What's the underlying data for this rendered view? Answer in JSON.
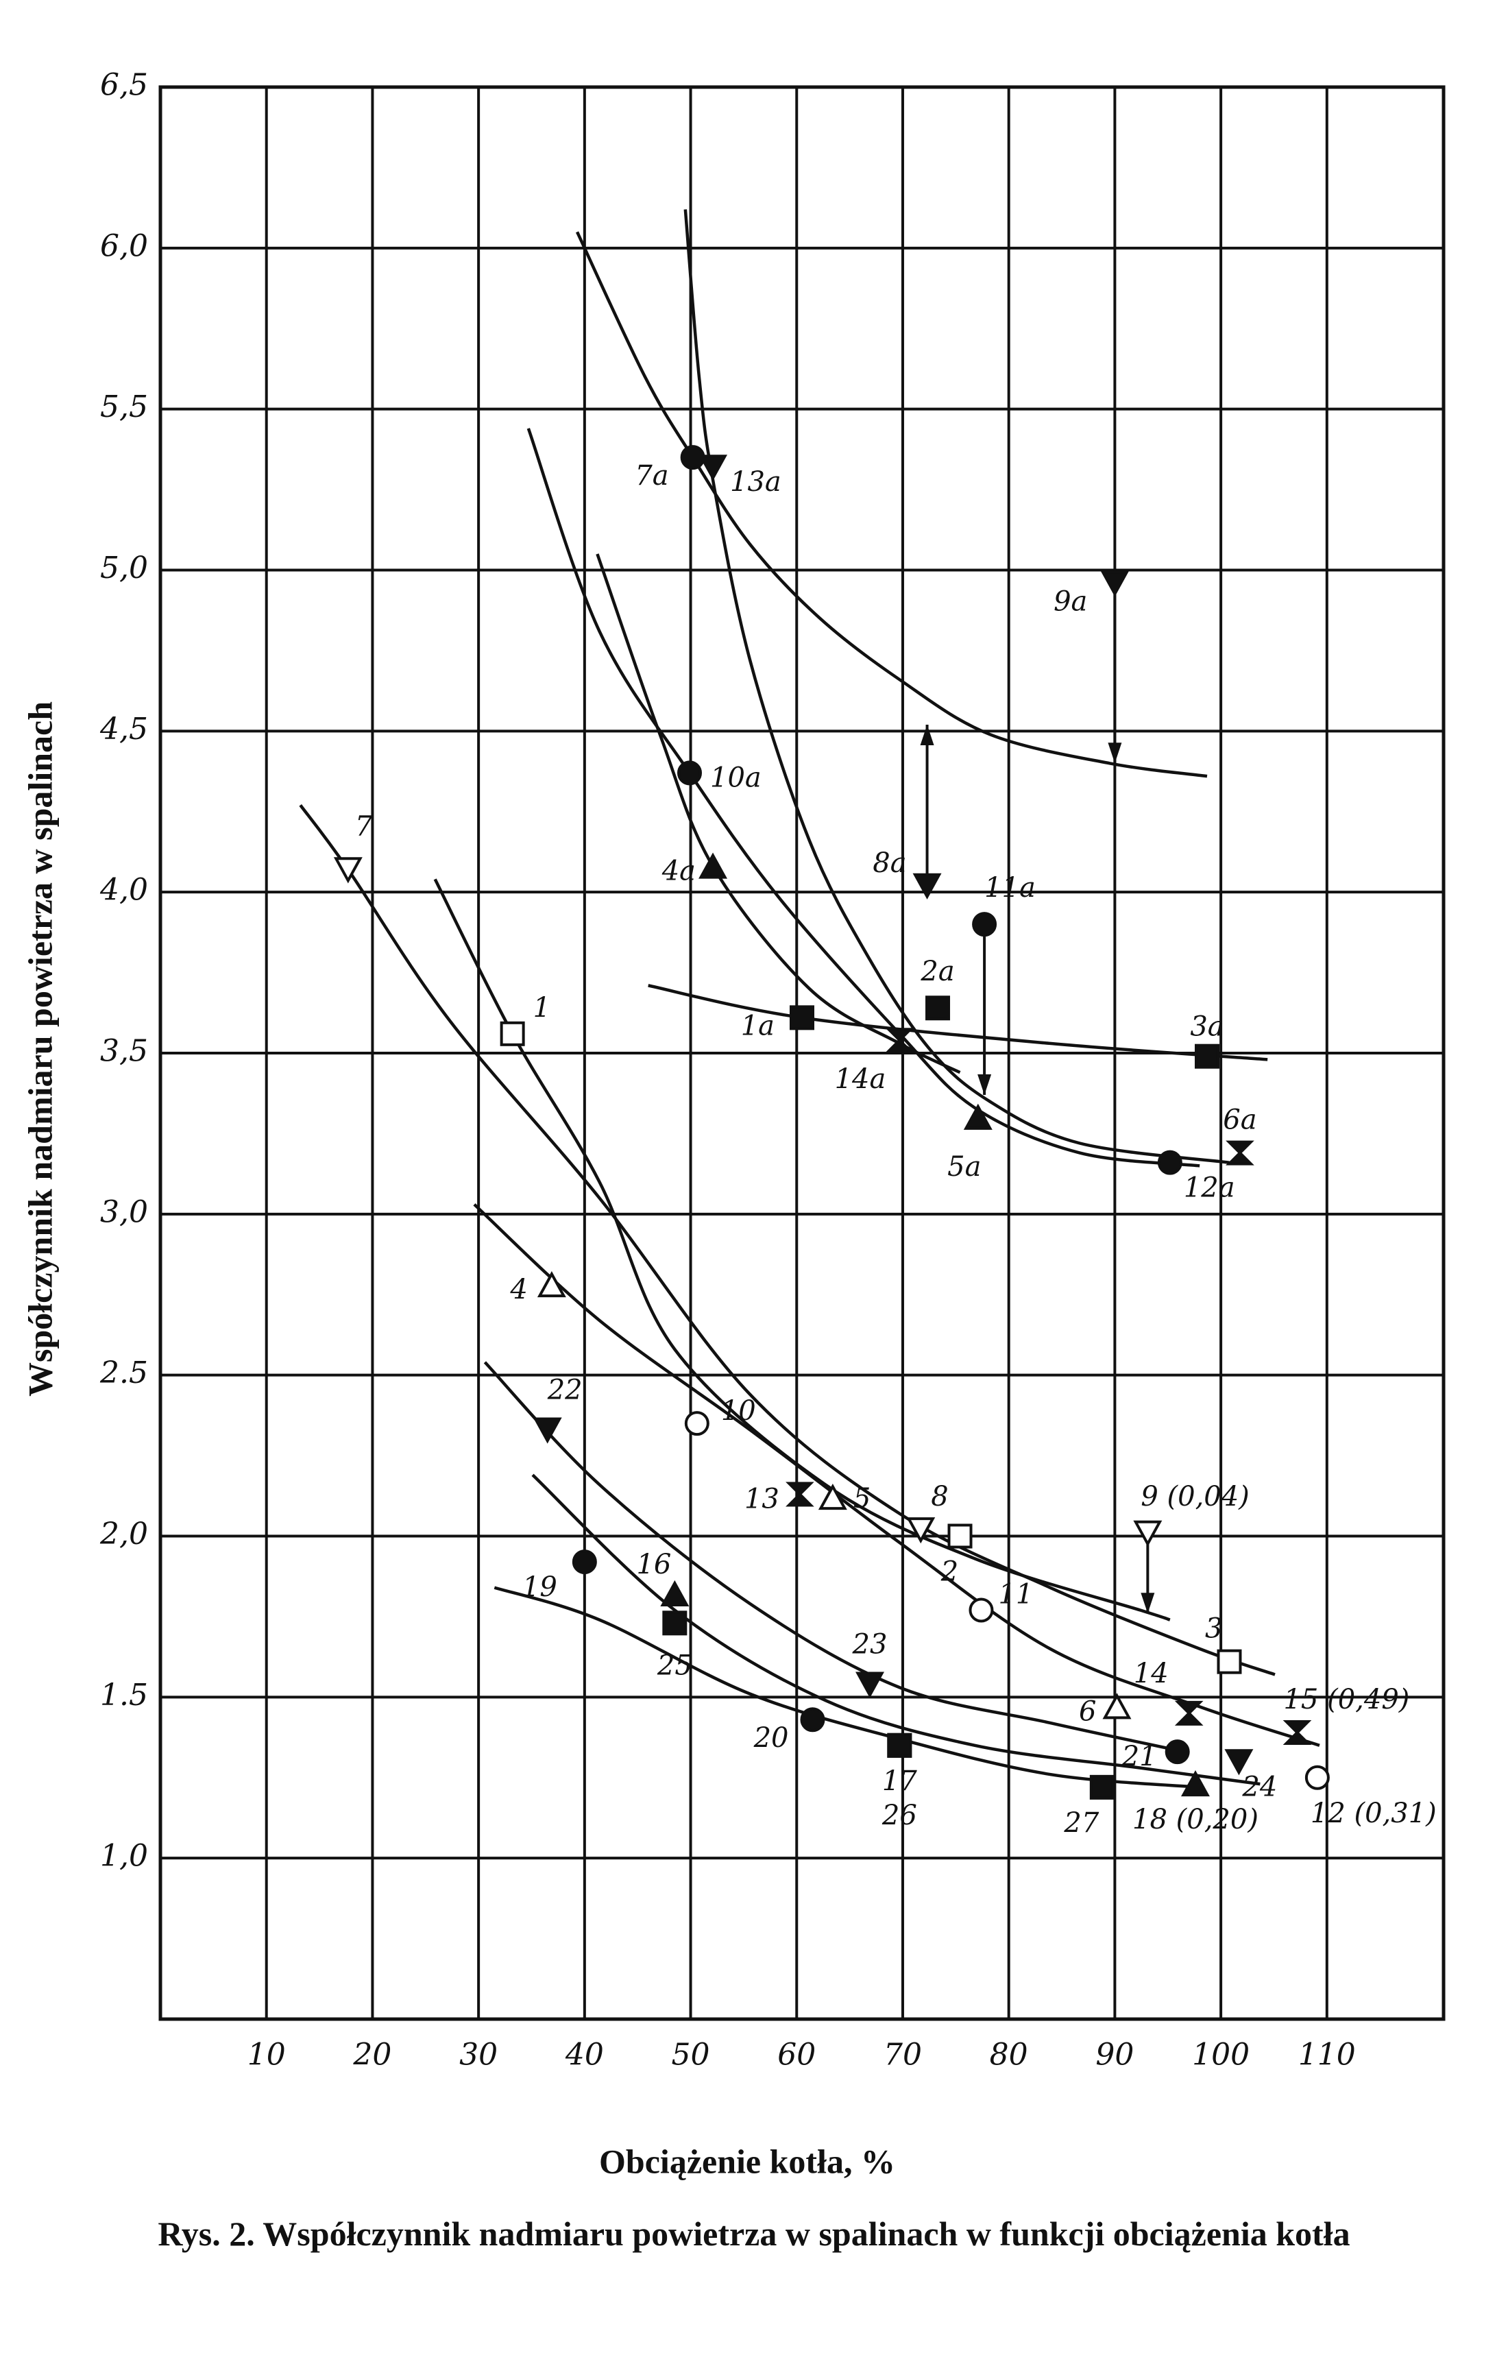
{
  "chart_data": {
    "type": "scatter",
    "title": "Rys. 2. Współczynnik nadmiaru powietrza w spalinach w funkcji obciążenia kotła",
    "x_label": "Obciążenie kotła, %",
    "y_label": "Współczynnik nadmiaru powietrza w spalinach",
    "xlim": [
      0,
      121
    ],
    "ylim": [
      0.5,
      6.5
    ],
    "xticks": [
      10,
      20,
      30,
      40,
      50,
      60,
      70,
      80,
      90,
      100,
      110
    ],
    "yticks": [
      {
        "value": 1.0,
        "label": "1,0"
      },
      {
        "value": 1.5,
        "label": "1.5"
      },
      {
        "value": 2.0,
        "label": "2,0"
      },
      {
        "value": 2.5,
        "label": "2.5"
      },
      {
        "value": 3.0,
        "label": "3,0"
      },
      {
        "value": 3.5,
        "label": "3,5"
      },
      {
        "value": 4.0,
        "label": "4,0"
      },
      {
        "value": 4.5,
        "label": "4,5"
      },
      {
        "value": 5.0,
        "label": "5,0"
      },
      {
        "value": 5.5,
        "label": "5,5"
      },
      {
        "value": 6.0,
        "label": "6,0"
      },
      {
        "value": 6.5,
        "label": "6,5"
      }
    ],
    "grid": true,
    "color": "#111111",
    "points": [
      {
        "label": "7",
        "x": 17.7,
        "y": 4.07,
        "marker": "open-down-triangle"
      },
      {
        "label": "1",
        "x": 33.2,
        "y": 3.56,
        "marker": "open-square"
      },
      {
        "label": "4",
        "x": 36.9,
        "y": 2.78,
        "marker": "open-triangle"
      },
      {
        "label": "22",
        "x": 36.5,
        "y": 2.33,
        "marker": "filled-down-triangle"
      },
      {
        "label": "19",
        "x": 40.0,
        "y": 1.92,
        "marker": "filled-circle"
      },
      {
        "label": "16",
        "x": 48.5,
        "y": 1.82,
        "marker": "filled-triangle"
      },
      {
        "label": "25",
        "x": 48.5,
        "y": 1.73,
        "marker": "filled-square"
      },
      {
        "label": "10",
        "x": 50.6,
        "y": 2.35,
        "marker": "open-circle"
      },
      {
        "label": "13",
        "x": 60.3,
        "y": 2.13,
        "marker": "hourglass"
      },
      {
        "label": "5",
        "x": 63.4,
        "y": 2.12,
        "marker": "open-triangle"
      },
      {
        "label": "8",
        "x": 71.7,
        "y": 2.02,
        "marker": "open-down-triangle"
      },
      {
        "label": "2",
        "x": 75.4,
        "y": 2.0,
        "marker": "open-square"
      },
      {
        "label": "11",
        "x": 77.4,
        "y": 1.77,
        "marker": "open-circle"
      },
      {
        "label": "9 (0,04)",
        "x": 93.1,
        "y": 2.01,
        "marker": "open-down-triangle"
      },
      {
        "label": "3",
        "x": 100.8,
        "y": 1.61,
        "marker": "open-square"
      },
      {
        "label": "14",
        "x": 97.0,
        "y": 1.45,
        "marker": "hourglass"
      },
      {
        "label": "15 (0,49)",
        "x": 107.2,
        "y": 1.39,
        "marker": "hourglass"
      },
      {
        "label": "6",
        "x": 90.2,
        "y": 1.47,
        "marker": "open-triangle"
      },
      {
        "label": "21",
        "x": 95.9,
        "y": 1.33,
        "marker": "filled-circle"
      },
      {
        "label": "24",
        "x": 101.7,
        "y": 1.3,
        "marker": "filled-down-triangle"
      },
      {
        "label": "12 (0,31)",
        "x": 109.1,
        "y": 1.25,
        "marker": "open-circle"
      },
      {
        "label": "23",
        "x": 66.9,
        "y": 1.54,
        "marker": "filled-down-triangle"
      },
      {
        "label": "20",
        "x": 61.5,
        "y": 1.43,
        "marker": "filled-circle"
      },
      {
        "label": "17",
        "x": 69.7,
        "y": 1.35,
        "marker": "filled-square"
      },
      {
        "label": "26",
        "x": 69.7,
        "y": 1.35,
        "marker": "filled-square"
      },
      {
        "label": "27",
        "x": 88.8,
        "y": 1.22,
        "marker": "filled-square"
      },
      {
        "label": "18 (0,20)",
        "x": 97.6,
        "y": 1.23,
        "marker": "filled-triangle"
      },
      {
        "label": "7a",
        "x": 50.2,
        "y": 5.35,
        "marker": "filled-circle"
      },
      {
        "label": "13a",
        "x": 52.1,
        "y": 5.32,
        "marker": "filled-down-triangle"
      },
      {
        "label": "9a",
        "x": 90.0,
        "y": 4.96,
        "marker": "filled-down-triangle"
      },
      {
        "label": "10a",
        "x": 49.9,
        "y": 4.37,
        "marker": "filled-circle"
      },
      {
        "label": "4a",
        "x": 52.1,
        "y": 4.08,
        "marker": "filled-triangle"
      },
      {
        "label": "8a",
        "x": 72.3,
        "y": 4.02,
        "marker": "filled-down-triangle"
      },
      {
        "label": "11a",
        "x": 77.7,
        "y": 3.9,
        "marker": "filled-circle"
      },
      {
        "label": "2a",
        "x": 73.3,
        "y": 3.64,
        "marker": "filled-square"
      },
      {
        "label": "1a",
        "x": 60.5,
        "y": 3.61,
        "marker": "filled-square"
      },
      {
        "label": "14a",
        "x": 69.7,
        "y": 3.54,
        "marker": "hourglass"
      },
      {
        "label": "3a",
        "x": 98.7,
        "y": 3.49,
        "marker": "filled-square"
      },
      {
        "label": "5a",
        "x": 77.1,
        "y": 3.3,
        "marker": "filled-triangle"
      },
      {
        "label": "12a",
        "x": 95.2,
        "y": 3.16,
        "marker": "filled-circle"
      },
      {
        "label": "6a",
        "x": 101.8,
        "y": 3.19,
        "marker": "hourglass"
      }
    ],
    "curves": [
      {
        "x": [
          39.3,
          45.7,
          50.2,
          55.6,
          62.2,
          69.7,
          78.2,
          89.5,
          98.7
        ],
        "y": [
          6.05,
          5.6,
          5.35,
          5.08,
          4.85,
          4.66,
          4.49,
          4.4,
          4.36
        ]
      },
      {
        "x": [
          49.5,
          50.8,
          52.1,
          55.6,
          61.2,
          66.9,
          72.6,
          78.2,
          86.7,
          100.8
        ],
        "y": [
          6.12,
          5.6,
          5.28,
          4.72,
          4.16,
          3.79,
          3.51,
          3.35,
          3.22,
          3.16
        ]
      },
      {
        "x": [
          34.7,
          41.4,
          49.9,
          58.4,
          69.7,
          76.8,
          86.7,
          98.0
        ],
        "y": [
          5.44,
          4.81,
          4.37,
          3.98,
          3.56,
          3.33,
          3.19,
          3.15
        ]
      },
      {
        "x": [
          41.2,
          47.1,
          52.1,
          61.2,
          69.7,
          75.4
        ],
        "y": [
          5.05,
          4.49,
          4.08,
          3.7,
          3.53,
          3.44
        ]
      },
      {
        "x": [
          46.0,
          60.5,
          83.9,
          104.4
        ],
        "y": [
          3.71,
          3.61,
          3.53,
          3.48
        ]
      },
      {
        "x": [
          13.2,
          17.7,
          27.3,
          41.4,
          55.6,
          69.7,
          83.9,
          98.0,
          105.1
        ],
        "y": [
          4.27,
          4.07,
          3.6,
          3.05,
          2.44,
          2.07,
          1.84,
          1.65,
          1.57
        ]
      },
      {
        "x": [
          25.9,
          33.2,
          41.4,
          48.5,
          62.7,
          76.8,
          92.4,
          95.2
        ],
        "y": [
          4.04,
          3.56,
          3.1,
          2.58,
          2.16,
          1.93,
          1.77,
          1.74
        ]
      },
      {
        "x": [
          29.6,
          41.4,
          55.6,
          69.7,
          83.9,
          98.0,
          109.3
        ],
        "y": [
          3.03,
          2.67,
          2.33,
          1.98,
          1.65,
          1.47,
          1.35
        ]
      },
      {
        "x": [
          30.6,
          41.4,
          55.6,
          69.7,
          83.9,
          96.6
        ],
        "y": [
          2.54,
          2.16,
          1.79,
          1.53,
          1.42,
          1.33
        ]
      },
      {
        "x": [
          31.5,
          41.4,
          55.6,
          69.7,
          83.9,
          98.0
        ],
        "y": [
          1.84,
          1.74,
          1.51,
          1.37,
          1.26,
          1.22
        ]
      },
      {
        "x": [
          35.1,
          48.5,
          62.7,
          76.8,
          92.4,
          103.7
        ],
        "y": [
          2.19,
          1.77,
          1.49,
          1.35,
          1.28,
          1.23
        ]
      }
    ],
    "arrows": [
      {
        "x": 90.0,
        "y": [
          4.96,
          4.4
        ]
      },
      {
        "x": 77.7,
        "y": [
          3.9,
          3.37
        ]
      },
      {
        "x": 93.1,
        "y": [
          2.01,
          1.76
        ]
      },
      {
        "x": 72.3,
        "y": [
          4.02,
          4.52
        ]
      }
    ]
  }
}
